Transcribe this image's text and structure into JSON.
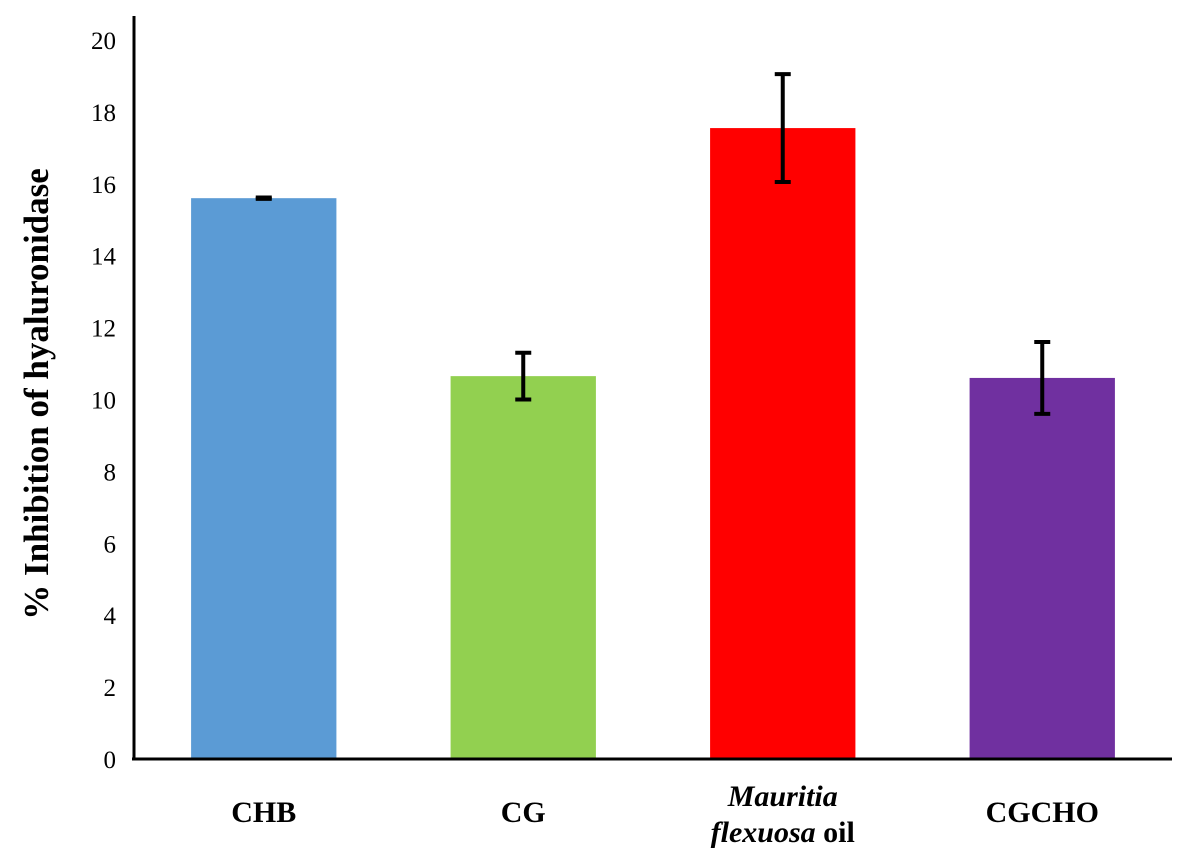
{
  "chart_data": {
    "type": "bar",
    "title": "",
    "xlabel": "",
    "ylabel": "% Inhibition of hyaluronidase",
    "ylim": [
      0,
      20
    ],
    "yticks": [
      0,
      2,
      4,
      6,
      8,
      10,
      12,
      14,
      16,
      18,
      20
    ],
    "grid": false,
    "categories": [
      {
        "line1": "CHB",
        "line1_italic": "",
        "line2_italic": "",
        "line2": ""
      },
      {
        "line1": "CG",
        "line1_italic": "",
        "line2_italic": "",
        "line2": ""
      },
      {
        "line1": "",
        "line1_italic": "Mauritia",
        "line2_italic": "flexuosa",
        "line2": " oil"
      },
      {
        "line1": "CGCHO",
        "line1_italic": "",
        "line2_italic": "",
        "line2": ""
      }
    ],
    "values": [
      15.6,
      10.65,
      17.55,
      10.6
    ],
    "errors": [
      0.02,
      0.65,
      1.5,
      1.0
    ],
    "colors": [
      "#5B9BD5",
      "#92D050",
      "#FF0000",
      "#7030A0"
    ]
  }
}
